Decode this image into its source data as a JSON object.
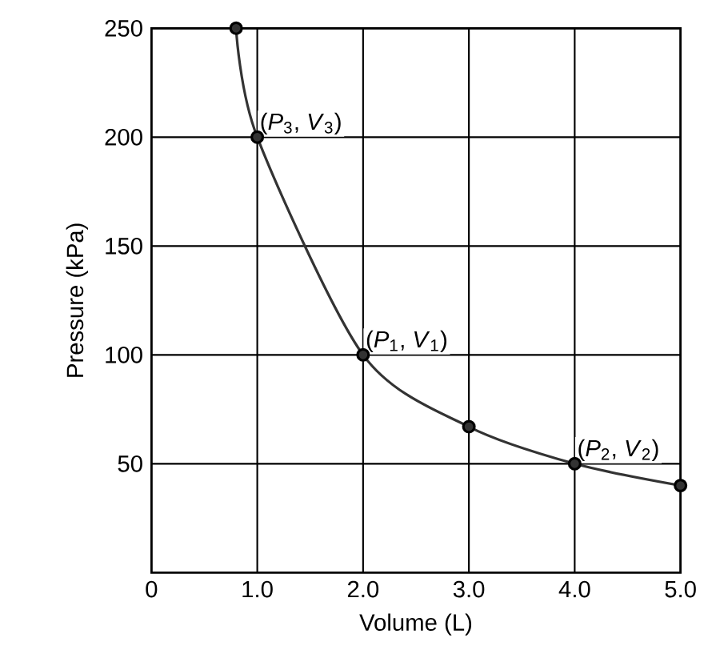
{
  "chart_data": {
    "type": "line",
    "xlabel": "Volume (L)",
    "ylabel": "Pressure (kPa)",
    "x": [
      0.8,
      1,
      2,
      3,
      4,
      5
    ],
    "series": [
      {
        "color": "#333333",
        "values": [
          250,
          200,
          100,
          67,
          50,
          40
        ]
      }
    ],
    "marker": "circle",
    "line_style": "solid",
    "grid": true,
    "xlim": [
      0,
      5
    ],
    "ylim": [
      0,
      250
    ],
    "xticks": [
      0,
      {
        "value": 1,
        "label": "1.0"
      },
      {
        "value": 2,
        "label": "2.0"
      },
      {
        "value": 3,
        "label": "3.0"
      },
      {
        "value": 4,
        "label": "4.0"
      },
      {
        "value": 5,
        "label": "5.0"
      }
    ],
    "yticks": [
      50,
      100,
      150,
      200,
      250
    ],
    "annotations": [
      {
        "text": "(*P*$_{3}$, *V*$_{3}$)",
        "x": 1,
        "y": 200
      },
      {
        "text": "(*P*$_{1}$, *V*$_{1}$)",
        "x": 2,
        "y": 100
      },
      {
        "text": "(*P*$_{2}$, *V*$_{2}$)",
        "x": 4,
        "y": 50
      }
    ]
  }
}
